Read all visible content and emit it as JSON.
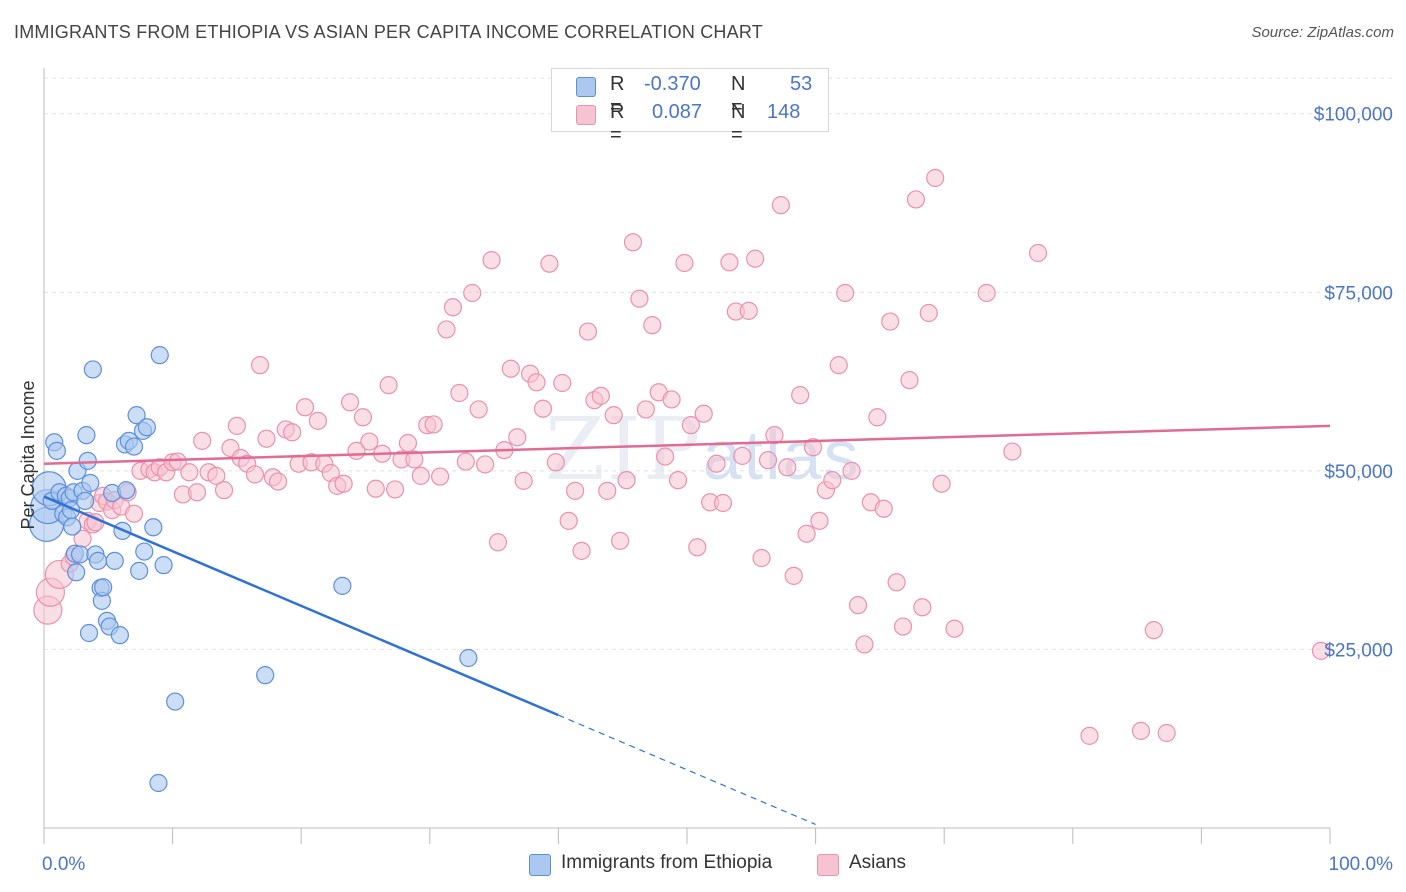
{
  "header": {
    "title": "IMMIGRANTS FROM ETHIOPIA VS ASIAN PER CAPITA INCOME CORRELATION CHART",
    "source": "Source: ZipAtlas.com"
  },
  "watermark": {
    "zip": "ZIP",
    "atlas": "atlas"
  },
  "legend": {
    "rows": [
      {
        "r_label": "R =",
        "r_value": "-0.370",
        "n_label": "N =",
        "n_value": "53"
      },
      {
        "r_label": "R =",
        "r_value": "0.087",
        "n_label": "N =",
        "n_value": "148"
      }
    ]
  },
  "bottom_legend": {
    "ethiopia": "Immigrants from Ethiopia",
    "asians": "Asians"
  },
  "colors": {
    "blue_fill": "#aac8f0",
    "blue_stroke": "#5f8fd8",
    "blue_line": "#2f72d4",
    "pink_fill": "#f6c3d2",
    "pink_stroke": "#e892ae",
    "pink_line": "#e26a93",
    "axis_text": "#4a76c9",
    "grid": "#e2e2e2"
  },
  "chart_data": {
    "type": "scatter",
    "title": "IMMIGRANTS FROM ETHIOPIA VS ASIAN PER CAPITA INCOME CORRELATION CHART",
    "xlabel": "",
    "ylabel": "Per Capita Income",
    "xlim": [
      0,
      100
    ],
    "ylim": [
      0,
      105000
    ],
    "x_tick_labels": [
      "0.0%",
      "100.0%"
    ],
    "y_ticks": [
      25000,
      50000,
      75000,
      100000
    ],
    "y_tick_labels": [
      "$25,000",
      "$50,000",
      "$75,000",
      "$100,000"
    ],
    "series": [
      {
        "name": "Immigrants from Ethiopia",
        "r": -0.37,
        "n": 53,
        "trend": {
          "x0": 0,
          "y0": 46400,
          "x1": 40,
          "y1": 15800,
          "dash_x1": 60,
          "dash_y1": 500
        },
        "points": [
          [
            0.2,
            42500
          ],
          [
            0.3,
            45000
          ],
          [
            0.4,
            47500
          ],
          [
            0.6,
            45800
          ],
          [
            0.8,
            54000
          ],
          [
            1.0,
            52800
          ],
          [
            1.2,
            47000
          ],
          [
            1.5,
            44000
          ],
          [
            1.7,
            46500
          ],
          [
            1.8,
            43500
          ],
          [
            2.0,
            46200
          ],
          [
            2.1,
            44500
          ],
          [
            2.2,
            42200
          ],
          [
            2.3,
            47000
          ],
          [
            2.4,
            38400
          ],
          [
            2.5,
            35800
          ],
          [
            2.6,
            50000
          ],
          [
            2.8,
            38300
          ],
          [
            3.0,
            47200
          ],
          [
            3.2,
            45800
          ],
          [
            3.3,
            55000
          ],
          [
            3.4,
            51400
          ],
          [
            3.5,
            27300
          ],
          [
            3.6,
            48300
          ],
          [
            3.8,
            64200
          ],
          [
            4.0,
            38300
          ],
          [
            4.2,
            37400
          ],
          [
            4.4,
            33600
          ],
          [
            4.5,
            31800
          ],
          [
            4.6,
            33700
          ],
          [
            4.9,
            29000
          ],
          [
            5.1,
            28200
          ],
          [
            5.3,
            46900
          ],
          [
            5.5,
            37400
          ],
          [
            5.9,
            27000
          ],
          [
            6.1,
            41600
          ],
          [
            6.3,
            53700
          ],
          [
            6.4,
            47300
          ],
          [
            6.6,
            54200
          ],
          [
            7.0,
            53400
          ],
          [
            7.2,
            57800
          ],
          [
            7.4,
            36000
          ],
          [
            7.7,
            55600
          ],
          [
            7.8,
            38700
          ],
          [
            8.0,
            56100
          ],
          [
            8.5,
            42100
          ],
          [
            8.9,
            6300
          ],
          [
            9.0,
            66200
          ],
          [
            9.3,
            36800
          ],
          [
            10.2,
            17700
          ],
          [
            17.2,
            21400
          ],
          [
            23.2,
            33900
          ],
          [
            33.0,
            23800
          ]
        ]
      },
      {
        "name": "Asians",
        "r": 0.087,
        "n": 148,
        "trend": {
          "x0": 0,
          "y0": 51000,
          "x1": 100,
          "y1": 56300
        },
        "points": [
          [
            0.3,
            30500
          ],
          [
            0.5,
            33000
          ],
          [
            1.2,
            35500
          ],
          [
            2.0,
            37000
          ],
          [
            2.3,
            38000
          ],
          [
            3.0,
            40500
          ],
          [
            3.4,
            43000
          ],
          [
            3.8,
            42500
          ],
          [
            4.0,
            42800
          ],
          [
            4.3,
            45500
          ],
          [
            4.6,
            46500
          ],
          [
            4.9,
            45700
          ],
          [
            5.3,
            44500
          ],
          [
            5.5,
            45900
          ],
          [
            6.0,
            45000
          ],
          [
            6.5,
            47000
          ],
          [
            7.0,
            44000
          ],
          [
            7.5,
            50000
          ],
          [
            8.2,
            50200
          ],
          [
            8.6,
            49800
          ],
          [
            9.0,
            50500
          ],
          [
            9.5,
            49800
          ],
          [
            10.0,
            51200
          ],
          [
            10.4,
            51300
          ],
          [
            10.8,
            46700
          ],
          [
            11.3,
            49800
          ],
          [
            11.9,
            47000
          ],
          [
            12.3,
            54200
          ],
          [
            12.8,
            49800
          ],
          [
            13.4,
            49300
          ],
          [
            14.0,
            47300
          ],
          [
            14.5,
            53200
          ],
          [
            15.0,
            56300
          ],
          [
            15.3,
            51800
          ],
          [
            15.8,
            51000
          ],
          [
            16.4,
            49500
          ],
          [
            16.8,
            64800
          ],
          [
            17.3,
            54500
          ],
          [
            17.8,
            49100
          ],
          [
            18.2,
            48500
          ],
          [
            18.8,
            55800
          ],
          [
            19.3,
            55400
          ],
          [
            19.8,
            51000
          ],
          [
            20.3,
            58900
          ],
          [
            20.8,
            51200
          ],
          [
            21.3,
            57000
          ],
          [
            21.8,
            51000
          ],
          [
            22.3,
            49700
          ],
          [
            22.8,
            47900
          ],
          [
            23.3,
            48200
          ],
          [
            23.8,
            59600
          ],
          [
            24.3,
            52800
          ],
          [
            24.8,
            57500
          ],
          [
            25.3,
            54100
          ],
          [
            25.8,
            47500
          ],
          [
            26.3,
            52400
          ],
          [
            26.8,
            62000
          ],
          [
            27.3,
            47400
          ],
          [
            27.8,
            51600
          ],
          [
            28.3,
            53900
          ],
          [
            28.8,
            51600
          ],
          [
            29.3,
            49300
          ],
          [
            29.8,
            56400
          ],
          [
            30.3,
            56500
          ],
          [
            30.8,
            49200
          ],
          [
            31.3,
            69800
          ],
          [
            31.8,
            72900
          ],
          [
            32.3,
            60900
          ],
          [
            32.8,
            51300
          ],
          [
            33.3,
            74900
          ],
          [
            33.8,
            58600
          ],
          [
            34.3,
            50900
          ],
          [
            34.8,
            79500
          ],
          [
            35.3,
            40000
          ],
          [
            35.8,
            52900
          ],
          [
            36.3,
            64300
          ],
          [
            36.8,
            54700
          ],
          [
            37.3,
            48600
          ],
          [
            37.8,
            63600
          ],
          [
            38.3,
            62400
          ],
          [
            38.8,
            58700
          ],
          [
            39.3,
            79000
          ],
          [
            39.8,
            51200
          ],
          [
            40.3,
            62300
          ],
          [
            40.8,
            43000
          ],
          [
            41.3,
            47200
          ],
          [
            41.8,
            38800
          ],
          [
            42.3,
            69500
          ],
          [
            42.8,
            59900
          ],
          [
            43.3,
            60500
          ],
          [
            43.8,
            47200
          ],
          [
            44.3,
            57800
          ],
          [
            44.8,
            40200
          ],
          [
            45.3,
            48700
          ],
          [
            45.8,
            82000
          ],
          [
            46.3,
            74100
          ],
          [
            46.8,
            58600
          ],
          [
            47.3,
            70400
          ],
          [
            47.8,
            61000
          ],
          [
            48.3,
            52000
          ],
          [
            48.8,
            60000
          ],
          [
            49.3,
            48700
          ],
          [
            49.8,
            79100
          ],
          [
            50.3,
            56400
          ],
          [
            50.8,
            39300
          ],
          [
            51.3,
            58000
          ],
          [
            51.8,
            45600
          ],
          [
            52.3,
            51000
          ],
          [
            52.8,
            45500
          ],
          [
            53.3,
            79200
          ],
          [
            53.8,
            72300
          ],
          [
            54.3,
            52100
          ],
          [
            54.8,
            72400
          ],
          [
            55.3,
            79700
          ],
          [
            55.8,
            37800
          ],
          [
            56.3,
            51500
          ],
          [
            56.8,
            55000
          ],
          [
            57.3,
            87200
          ],
          [
            57.8,
            50500
          ],
          [
            58.3,
            35300
          ],
          [
            58.8,
            60600
          ],
          [
            59.3,
            41200
          ],
          [
            59.8,
            53300
          ],
          [
            60.3,
            43000
          ],
          [
            60.8,
            47300
          ],
          [
            61.3,
            48700
          ],
          [
            61.8,
            64800
          ],
          [
            62.3,
            74900
          ],
          [
            62.8,
            50000
          ],
          [
            63.3,
            31200
          ],
          [
            63.8,
            25700
          ],
          [
            64.3,
            45600
          ],
          [
            64.8,
            57500
          ],
          [
            65.3,
            44700
          ],
          [
            65.8,
            70900
          ],
          [
            66.3,
            34400
          ],
          [
            66.8,
            28200
          ],
          [
            67.3,
            62700
          ],
          [
            67.8,
            88000
          ],
          [
            68.3,
            30900
          ],
          [
            68.8,
            72100
          ],
          [
            69.3,
            91000
          ],
          [
            69.8,
            48200
          ],
          [
            70.8,
            27900
          ],
          [
            73.3,
            74900
          ],
          [
            75.3,
            52700
          ],
          [
            77.3,
            80500
          ],
          [
            81.3,
            12900
          ],
          [
            85.3,
            13600
          ],
          [
            86.3,
            27700
          ],
          [
            87.3,
            13300
          ],
          [
            99.3,
            24800
          ]
        ]
      }
    ],
    "legend_position": "top-center",
    "grid": true
  }
}
